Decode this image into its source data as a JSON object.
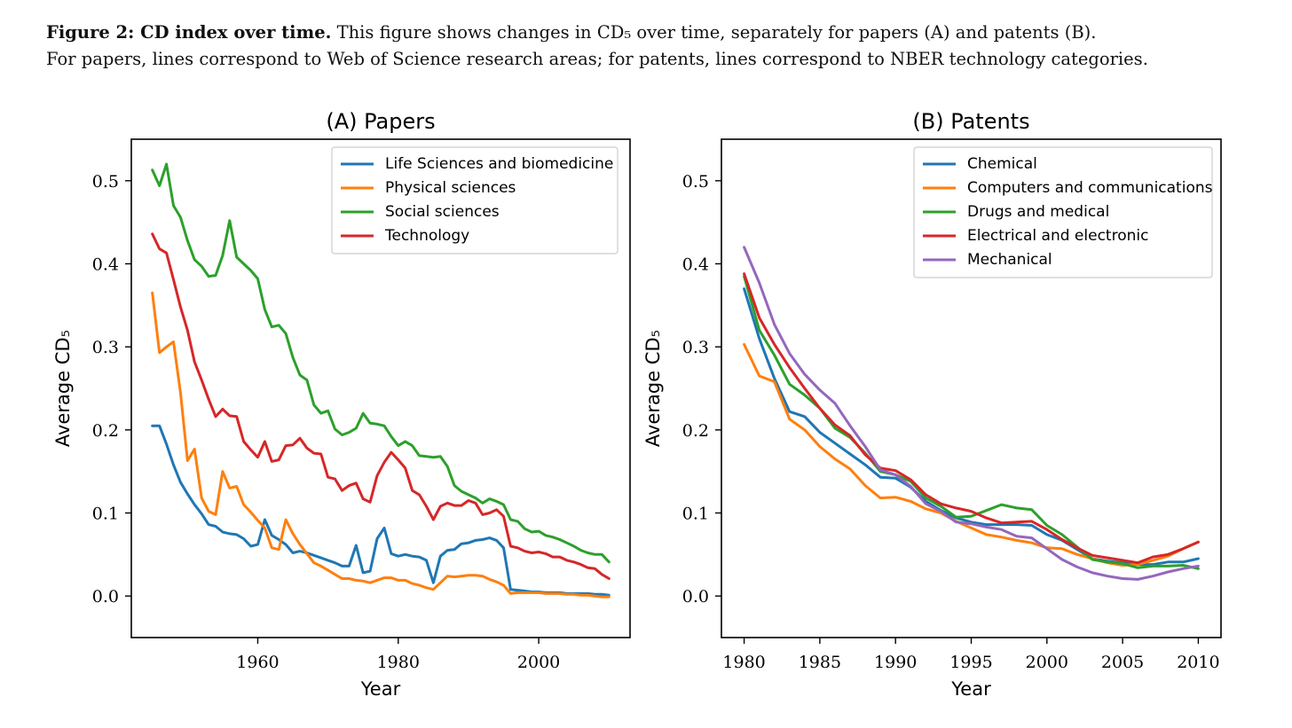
{
  "caption": {
    "lead": "Figure 2: CD index over time.",
    "line1": "This figure shows changes in CD₅ over time, separately for papers (A) and patents (B).",
    "line2": "For papers, lines correspond to Web of Science research areas; for patents, lines correspond to NBER technology categories."
  },
  "chart_data": [
    {
      "type": "line",
      "title": "(A) Papers",
      "xlabel": "Year",
      "ylabel": "Average CD₅",
      "xlim": [
        1942,
        2013
      ],
      "ylim": [
        -0.05,
        0.55
      ],
      "xticks": [
        1960,
        1980,
        2000
      ],
      "yticks": [
        0.0,
        0.1,
        0.2,
        0.3,
        0.4,
        0.5
      ],
      "grid": false,
      "legend": "top-right",
      "series": [
        {
          "name": "Life Sciences and biomedicine",
          "color": "#1f77b4",
          "x": [
            1945,
            1946,
            1947,
            1948,
            1949,
            1950,
            1951,
            1952,
            1953,
            1954,
            1955,
            1956,
            1957,
            1958,
            1959,
            1960,
            1961,
            1962,
            1963,
            1964,
            1965,
            1966,
            1967,
            1968,
            1969,
            1970,
            1971,
            1972,
            1973,
            1974,
            1975,
            1976,
            1977,
            1978,
            1979,
            1980,
            1981,
            1982,
            1983,
            1984,
            1985,
            1986,
            1987,
            1988,
            1989,
            1990,
            1991,
            1992,
            1993,
            1994,
            1995,
            1996,
            1997,
            1998,
            1999,
            2000,
            2001,
            2002,
            2003,
            2004,
            2005,
            2006,
            2007,
            2008,
            2009,
            2010
          ],
          "y": [
            0.205,
            0.205,
            0.183,
            0.158,
            0.137,
            0.123,
            0.11,
            0.099,
            0.086,
            0.084,
            0.077,
            0.075,
            0.074,
            0.069,
            0.06,
            0.062,
            0.092,
            0.073,
            0.068,
            0.062,
            0.052,
            0.054,
            0.052,
            0.049,
            0.046,
            0.043,
            0.04,
            0.036,
            0.036,
            0.061,
            0.028,
            0.03,
            0.069,
            0.082,
            0.051,
            0.048,
            0.05,
            0.048,
            0.047,
            0.043,
            0.016,
            0.048,
            0.055,
            0.056,
            0.063,
            0.064,
            0.067,
            0.068,
            0.07,
            0.067,
            0.058,
            0.008,
            0.007,
            0.006,
            0.005,
            0.005,
            0.004,
            0.004,
            0.004,
            0.003,
            0.003,
            0.003,
            0.003,
            0.002,
            0.002,
            0.001
          ]
        },
        {
          "name": "Physical sciences",
          "color": "#ff7f0e",
          "x": [
            1945,
            1946,
            1947,
            1948,
            1949,
            1950,
            1951,
            1952,
            1953,
            1954,
            1955,
            1956,
            1957,
            1958,
            1959,
            1960,
            1961,
            1962,
            1963,
            1964,
            1965,
            1966,
            1967,
            1968,
            1969,
            1970,
            1971,
            1972,
            1973,
            1974,
            1975,
            1976,
            1977,
            1978,
            1979,
            1980,
            1981,
            1982,
            1983,
            1984,
            1985,
            1986,
            1987,
            1988,
            1989,
            1990,
            1991,
            1992,
            1993,
            1994,
            1995,
            1996,
            1997,
            1998,
            1999,
            2000,
            2001,
            2002,
            2003,
            2004,
            2005,
            2006,
            2007,
            2008,
            2009,
            2010
          ],
          "y": [
            0.365,
            0.293,
            0.3,
            0.306,
            0.245,
            0.163,
            0.177,
            0.118,
            0.102,
            0.098,
            0.15,
            0.13,
            0.132,
            0.11,
            0.101,
            0.091,
            0.082,
            0.058,
            0.056,
            0.092,
            0.075,
            0.062,
            0.051,
            0.04,
            0.036,
            0.031,
            0.026,
            0.021,
            0.021,
            0.019,
            0.018,
            0.016,
            0.019,
            0.022,
            0.022,
            0.019,
            0.019,
            0.015,
            0.013,
            0.01,
            0.008,
            0.016,
            0.024,
            0.023,
            0.024,
            0.025,
            0.025,
            0.024,
            0.02,
            0.017,
            0.013,
            0.003,
            0.004,
            0.004,
            0.004,
            0.004,
            0.003,
            0.003,
            0.003,
            0.002,
            0.002,
            0.001,
            0.001,
            0.0,
            -0.001,
            -0.001
          ]
        },
        {
          "name": "Social sciences",
          "color": "#2ca02c",
          "x": [
            1945,
            1946,
            1947,
            1948,
            1949,
            1950,
            1951,
            1952,
            1953,
            1954,
            1955,
            1956,
            1957,
            1958,
            1959,
            1960,
            1961,
            1962,
            1963,
            1964,
            1965,
            1966,
            1967,
            1968,
            1969,
            1970,
            1971,
            1972,
            1973,
            1974,
            1975,
            1976,
            1977,
            1978,
            1979,
            1980,
            1981,
            1982,
            1983,
            1984,
            1985,
            1986,
            1987,
            1988,
            1989,
            1990,
            1991,
            1992,
            1993,
            1994,
            1995,
            1996,
            1997,
            1998,
            1999,
            2000,
            2001,
            2002,
            2003,
            2004,
            2005,
            2006,
            2007,
            2008,
            2009,
            2010
          ],
          "y": [
            0.513,
            0.494,
            0.52,
            0.47,
            0.456,
            0.428,
            0.405,
            0.397,
            0.385,
            0.386,
            0.41,
            0.452,
            0.408,
            0.4,
            0.392,
            0.382,
            0.345,
            0.324,
            0.326,
            0.316,
            0.287,
            0.266,
            0.26,
            0.23,
            0.22,
            0.223,
            0.201,
            0.194,
            0.197,
            0.202,
            0.22,
            0.208,
            0.207,
            0.205,
            0.192,
            0.181,
            0.186,
            0.181,
            0.169,
            0.168,
            0.167,
            0.168,
            0.156,
            0.133,
            0.126,
            0.122,
            0.118,
            0.112,
            0.117,
            0.114,
            0.11,
            0.092,
            0.09,
            0.081,
            0.077,
            0.078,
            0.073,
            0.071,
            0.068,
            0.064,
            0.06,
            0.055,
            0.052,
            0.05,
            0.05,
            0.041
          ]
        },
        {
          "name": "Technology",
          "color": "#d62728",
          "x": [
            1945,
            1946,
            1947,
            1948,
            1949,
            1950,
            1951,
            1952,
            1953,
            1954,
            1955,
            1956,
            1957,
            1958,
            1959,
            1960,
            1961,
            1962,
            1963,
            1964,
            1965,
            1966,
            1967,
            1968,
            1969,
            1970,
            1971,
            1972,
            1973,
            1974,
            1975,
            1976,
            1977,
            1978,
            1979,
            1980,
            1981,
            1982,
            1983,
            1984,
            1985,
            1986,
            1987,
            1988,
            1989,
            1990,
            1991,
            1992,
            1993,
            1994,
            1995,
            1996,
            1997,
            1998,
            1999,
            2000,
            2001,
            2002,
            2003,
            2004,
            2005,
            2006,
            2007,
            2008,
            2009,
            2010
          ],
          "y": [
            0.436,
            0.418,
            0.413,
            0.381,
            0.348,
            0.32,
            0.282,
            0.26,
            0.237,
            0.216,
            0.225,
            0.217,
            0.216,
            0.186,
            0.176,
            0.167,
            0.186,
            0.162,
            0.164,
            0.181,
            0.182,
            0.19,
            0.178,
            0.172,
            0.171,
            0.143,
            0.141,
            0.127,
            0.133,
            0.136,
            0.117,
            0.113,
            0.145,
            0.161,
            0.173,
            0.164,
            0.154,
            0.127,
            0.122,
            0.108,
            0.092,
            0.108,
            0.112,
            0.109,
            0.109,
            0.115,
            0.112,
            0.098,
            0.1,
            0.104,
            0.096,
            0.06,
            0.058,
            0.054,
            0.052,
            0.053,
            0.051,
            0.047,
            0.047,
            0.043,
            0.041,
            0.038,
            0.034,
            0.033,
            0.026,
            0.021
          ]
        }
      ]
    },
    {
      "type": "line",
      "title": "(B) Patents",
      "xlabel": "Year",
      "ylabel": "Average CD₅",
      "xlim": [
        1978.5,
        2011.5
      ],
      "ylim": [
        -0.05,
        0.55
      ],
      "xticks": [
        1980,
        1985,
        1990,
        1995,
        2000,
        2005,
        2010
      ],
      "yticks": [
        0.0,
        0.1,
        0.2,
        0.3,
        0.4,
        0.5
      ],
      "grid": false,
      "legend": "top-right",
      "series": [
        {
          "name": "Chemical",
          "color": "#1f77b4",
          "x": [
            1980,
            1981,
            1982,
            1983,
            1984,
            1985,
            1986,
            1987,
            1988,
            1989,
            1990,
            1991,
            1992,
            1993,
            1994,
            1995,
            1996,
            1997,
            1998,
            1999,
            2000,
            2001,
            2002,
            2003,
            2004,
            2005,
            2006,
            2007,
            2008,
            2009,
            2010
          ],
          "y": [
            0.37,
            0.31,
            0.262,
            0.222,
            0.216,
            0.197,
            0.184,
            0.171,
            0.158,
            0.143,
            0.142,
            0.131,
            0.114,
            0.103,
            0.094,
            0.089,
            0.086,
            0.086,
            0.086,
            0.085,
            0.074,
            0.067,
            0.056,
            0.045,
            0.042,
            0.04,
            0.038,
            0.038,
            0.041,
            0.041,
            0.045
          ]
        },
        {
          "name": "Computers and communications",
          "color": "#ff7f0e",
          "x": [
            1980,
            1981,
            1982,
            1983,
            1984,
            1985,
            1986,
            1987,
            1988,
            1989,
            1990,
            1991,
            1992,
            1993,
            1994,
            1995,
            1996,
            1997,
            1998,
            1999,
            2000,
            2001,
            2002,
            2003,
            2004,
            2005,
            2006,
            2007,
            2008,
            2009,
            2010
          ],
          "y": [
            0.303,
            0.265,
            0.258,
            0.213,
            0.2,
            0.18,
            0.165,
            0.153,
            0.133,
            0.118,
            0.119,
            0.114,
            0.105,
            0.1,
            0.09,
            0.082,
            0.074,
            0.071,
            0.067,
            0.064,
            0.058,
            0.057,
            0.05,
            0.045,
            0.04,
            0.037,
            0.038,
            0.043,
            0.048,
            0.057,
            0.065
          ]
        },
        {
          "name": "Drugs and medical",
          "color": "#2ca02c",
          "x": [
            1980,
            1981,
            1982,
            1983,
            1984,
            1985,
            1986,
            1987,
            1988,
            1989,
            1990,
            1991,
            1992,
            1993,
            1994,
            1995,
            1996,
            1997,
            1998,
            1999,
            2000,
            2001,
            2002,
            2003,
            2004,
            2005,
            2006,
            2007,
            2008,
            2009,
            2010
          ],
          "y": [
            0.385,
            0.32,
            0.29,
            0.255,
            0.242,
            0.226,
            0.202,
            0.191,
            0.172,
            0.15,
            0.146,
            0.138,
            0.118,
            0.108,
            0.095,
            0.096,
            0.103,
            0.11,
            0.106,
            0.104,
            0.085,
            0.074,
            0.059,
            0.044,
            0.041,
            0.039,
            0.034,
            0.036,
            0.036,
            0.037,
            0.033
          ]
        },
        {
          "name": "Electrical and electronic",
          "color": "#d62728",
          "x": [
            1980,
            1981,
            1982,
            1983,
            1984,
            1985,
            1986,
            1987,
            1988,
            1989,
            1990,
            1991,
            1992,
            1993,
            1994,
            1995,
            1996,
            1997,
            1998,
            1999,
            2000,
            2001,
            2002,
            2003,
            2004,
            2005,
            2006,
            2007,
            2008,
            2009,
            2010
          ],
          "y": [
            0.388,
            0.335,
            0.303,
            0.275,
            0.25,
            0.226,
            0.206,
            0.193,
            0.17,
            0.154,
            0.151,
            0.14,
            0.122,
            0.111,
            0.106,
            0.102,
            0.094,
            0.088,
            0.089,
            0.09,
            0.08,
            0.068,
            0.058,
            0.049,
            0.046,
            0.043,
            0.04,
            0.047,
            0.05,
            0.057,
            0.065
          ]
        },
        {
          "name": "Mechanical",
          "color": "#9467bd",
          "x": [
            1980,
            1981,
            1982,
            1983,
            1984,
            1985,
            1986,
            1987,
            1988,
            1989,
            1990,
            1991,
            1992,
            1993,
            1994,
            1995,
            1996,
            1997,
            1998,
            1999,
            2000,
            2001,
            2002,
            2003,
            2004,
            2005,
            2006,
            2007,
            2008,
            2009,
            2010
          ],
          "y": [
            0.42,
            0.377,
            0.327,
            0.292,
            0.267,
            0.248,
            0.232,
            0.205,
            0.18,
            0.152,
            0.146,
            0.132,
            0.111,
            0.102,
            0.089,
            0.087,
            0.083,
            0.08,
            0.072,
            0.07,
            0.057,
            0.044,
            0.035,
            0.028,
            0.024,
            0.021,
            0.02,
            0.024,
            0.029,
            0.033,
            0.036
          ]
        }
      ]
    }
  ]
}
